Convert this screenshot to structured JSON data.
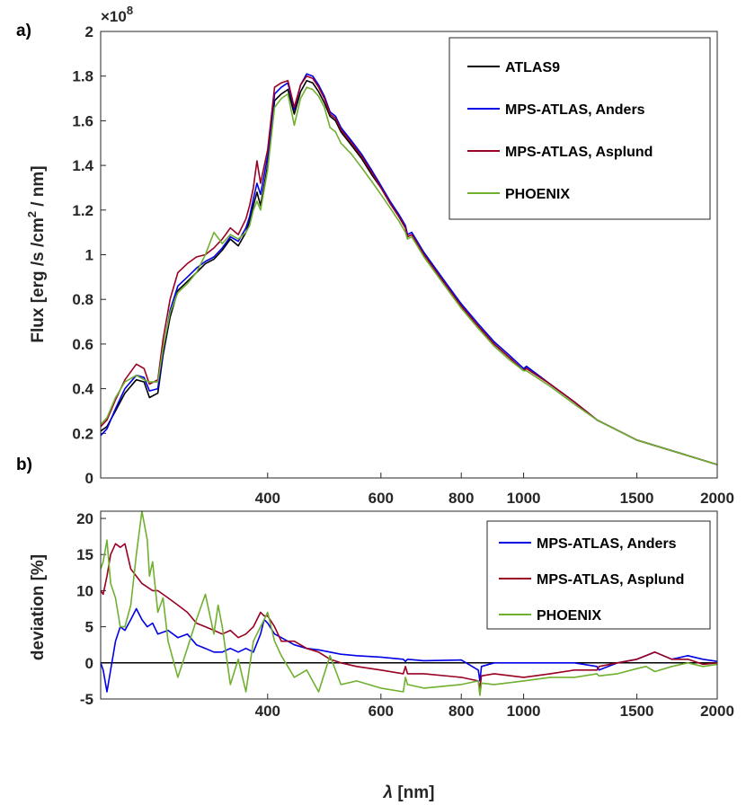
{
  "chart_data": [
    {
      "type": "line",
      "panel_label": "a)",
      "ylabel": "Flux [erg /s /cm",
      "ylabel_sup": "2",
      "ylabel_tail": " / nm]",
      "exponent_base": "×10",
      "exponent_power": "8",
      "xscale": "log",
      "xlim": [
        220,
        2000
      ],
      "ylim": [
        0,
        2
      ],
      "xticks": [
        400,
        600,
        800,
        1000,
        1500,
        2000
      ],
      "xtick_labels": [
        "400",
        "600",
        "800",
        "1000",
        "1500",
        "2000"
      ],
      "yticks": [
        0,
        0.2,
        0.4,
        0.6,
        0.8,
        1,
        1.2,
        1.4,
        1.6,
        1.8,
        2
      ],
      "ytick_labels": [
        "0",
        "0.2",
        "0.4",
        "0.6",
        "0.8",
        "1",
        "1.2",
        "1.4",
        "1.6",
        "1.8",
        "2"
      ],
      "legend_position": "top-right",
      "series": [
        {
          "name": "ATLAS9",
          "color": "#000000",
          "x": [
            220,
            225,
            232,
            240,
            250,
            257,
            262,
            270,
            275,
            282,
            290,
            300,
            310,
            320,
            330,
            340,
            350,
            360,
            370,
            375,
            380,
            385,
            390,
            400,
            410,
            420,
            430,
            440,
            450,
            460,
            470,
            480,
            490,
            500,
            510,
            520,
            540,
            560,
            580,
            600,
            620,
            640,
            655,
            660,
            670,
            700,
            750,
            800,
            850,
            900,
            950,
            1000,
            1010,
            1100,
            1200,
            1300,
            1500,
            1800,
            2000
          ],
          "y": [
            0.21,
            0.23,
            0.3,
            0.38,
            0.44,
            0.43,
            0.36,
            0.38,
            0.55,
            0.72,
            0.84,
            0.88,
            0.92,
            0.96,
            0.98,
            1.02,
            1.07,
            1.04,
            1.1,
            1.15,
            1.22,
            1.28,
            1.22,
            1.4,
            1.69,
            1.72,
            1.74,
            1.63,
            1.73,
            1.78,
            1.77,
            1.73,
            1.68,
            1.62,
            1.6,
            1.55,
            1.49,
            1.43,
            1.36,
            1.3,
            1.23,
            1.17,
            1.12,
            1.08,
            1.09,
            1.0,
            0.88,
            0.77,
            0.68,
            0.6,
            0.54,
            0.48,
            0.5,
            0.42,
            0.34,
            0.26,
            0.17,
            0.1,
            0.06
          ]
        },
        {
          "name": "MPS-ATLAS, Anders",
          "color": "#0000e6",
          "x": [
            220,
            225,
            232,
            240,
            250,
            257,
            262,
            270,
            275,
            282,
            290,
            300,
            310,
            320,
            330,
            340,
            350,
            360,
            370,
            375,
            380,
            385,
            390,
            400,
            410,
            420,
            430,
            440,
            450,
            460,
            470,
            480,
            490,
            500,
            510,
            520,
            540,
            560,
            580,
            600,
            620,
            640,
            655,
            660,
            670,
            700,
            750,
            800,
            850,
            900,
            950,
            1000,
            1010,
            1100,
            1200,
            1300,
            1500,
            1800,
            2000
          ],
          "y": [
            0.19,
            0.22,
            0.31,
            0.4,
            0.46,
            0.45,
            0.39,
            0.4,
            0.57,
            0.75,
            0.86,
            0.9,
            0.94,
            0.97,
            0.99,
            1.03,
            1.08,
            1.06,
            1.12,
            1.17,
            1.25,
            1.32,
            1.27,
            1.44,
            1.72,
            1.75,
            1.77,
            1.65,
            1.76,
            1.81,
            1.8,
            1.76,
            1.71,
            1.64,
            1.62,
            1.57,
            1.51,
            1.45,
            1.38,
            1.31,
            1.24,
            1.18,
            1.13,
            1.09,
            1.1,
            1.01,
            0.89,
            0.78,
            0.69,
            0.61,
            0.55,
            0.49,
            0.5,
            0.42,
            0.34,
            0.26,
            0.17,
            0.1,
            0.06
          ]
        },
        {
          "name": "MPS-ATLAS, Asplund",
          "color": "#990022",
          "x": [
            220,
            225,
            232,
            240,
            250,
            257,
            262,
            270,
            275,
            282,
            290,
            300,
            310,
            320,
            330,
            340,
            350,
            360,
            370,
            375,
            380,
            385,
            390,
            400,
            410,
            420,
            430,
            440,
            450,
            460,
            470,
            480,
            490,
            500,
            510,
            520,
            540,
            560,
            580,
            600,
            620,
            640,
            655,
            660,
            670,
            700,
            750,
            800,
            850,
            900,
            950,
            1000,
            1010,
            1100,
            1200,
            1300,
            1500,
            1800,
            2000
          ],
          "y": [
            0.23,
            0.26,
            0.35,
            0.44,
            0.51,
            0.49,
            0.42,
            0.44,
            0.62,
            0.8,
            0.92,
            0.96,
            0.99,
            1.0,
            1.03,
            1.07,
            1.12,
            1.09,
            1.16,
            1.22,
            1.3,
            1.42,
            1.32,
            1.47,
            1.75,
            1.77,
            1.78,
            1.66,
            1.76,
            1.8,
            1.79,
            1.75,
            1.7,
            1.63,
            1.61,
            1.56,
            1.5,
            1.44,
            1.37,
            1.3,
            1.23,
            1.17,
            1.12,
            1.08,
            1.09,
            1.0,
            0.88,
            0.77,
            0.68,
            0.6,
            0.54,
            0.48,
            0.49,
            0.42,
            0.34,
            0.26,
            0.17,
            0.1,
            0.06
          ]
        },
        {
          "name": "PHOENIX",
          "color": "#70b030",
          "x": [
            220,
            225,
            232,
            240,
            250,
            257,
            262,
            270,
            275,
            282,
            290,
            300,
            310,
            320,
            330,
            340,
            350,
            360,
            370,
            375,
            380,
            385,
            390,
            400,
            410,
            420,
            430,
            440,
            450,
            460,
            470,
            480,
            490,
            500,
            510,
            520,
            540,
            560,
            580,
            600,
            620,
            640,
            655,
            660,
            670,
            700,
            750,
            800,
            850,
            900,
            950,
            1000,
            1010,
            1100,
            1200,
            1300,
            1500,
            1800,
            2000
          ],
          "y": [
            0.24,
            0.27,
            0.36,
            0.43,
            0.46,
            0.44,
            0.43,
            0.43,
            0.58,
            0.74,
            0.83,
            0.87,
            0.92,
            1.0,
            1.1,
            1.05,
            1.09,
            1.07,
            1.1,
            1.13,
            1.2,
            1.24,
            1.2,
            1.38,
            1.66,
            1.7,
            1.72,
            1.58,
            1.7,
            1.75,
            1.74,
            1.71,
            1.66,
            1.57,
            1.55,
            1.5,
            1.45,
            1.39,
            1.33,
            1.27,
            1.21,
            1.15,
            1.1,
            1.07,
            1.08,
            0.99,
            0.87,
            0.76,
            0.67,
            0.59,
            0.53,
            0.48,
            0.48,
            0.41,
            0.33,
            0.26,
            0.17,
            0.1,
            0.06
          ]
        }
      ]
    },
    {
      "type": "line",
      "panel_label": "b)",
      "ylabel": "deviation [%]",
      "xlabel_symbol": "λ",
      "xlabel": " [nm]",
      "xscale": "log",
      "xlim": [
        220,
        2000
      ],
      "ylim": [
        -5,
        21
      ],
      "xticks": [
        400,
        600,
        800,
        1000,
        1500,
        2000
      ],
      "xtick_labels": [
        "400",
        "600",
        "800",
        "1000",
        "1500",
        "2000"
      ],
      "yticks": [
        -5,
        0,
        5,
        10,
        15,
        20
      ],
      "ytick_labels": [
        "-5",
        "0",
        "5",
        "10",
        "15",
        "20"
      ],
      "zero_line": true,
      "legend_position": "top-right",
      "series": [
        {
          "name": "MPS-ATLAS, Anders",
          "color": "#0000e6",
          "x": [
            220,
            222,
            225,
            228,
            232,
            236,
            240,
            245,
            250,
            255,
            260,
            265,
            270,
            280,
            290,
            300,
            310,
            320,
            330,
            340,
            350,
            360,
            370,
            380,
            390,
            395,
            400,
            410,
            420,
            440,
            460,
            480,
            500,
            520,
            550,
            600,
            650,
            655,
            660,
            700,
            800,
            850,
            855,
            860,
            900,
            1000,
            1100,
            1200,
            1300,
            1310,
            1400,
            1500,
            1550,
            1600,
            1700,
            1800,
            1900,
            2000
          ],
          "y": [
            0,
            -1,
            -4,
            -1,
            3,
            5,
            4.5,
            6,
            7.5,
            6,
            5,
            5.5,
            4,
            4.5,
            3.5,
            4,
            2.5,
            2,
            1.5,
            1.5,
            2,
            1.5,
            2,
            1.5,
            4,
            6,
            5.5,
            4,
            3.5,
            2.5,
            2,
            1.8,
            1.5,
            1.2,
            1,
            0.8,
            0.5,
            0.2,
            0.5,
            0.3,
            0.4,
            -1,
            -2.5,
            -0.5,
            0,
            0,
            0,
            0,
            -0.5,
            -1,
            0,
            0.5,
            1,
            1.5,
            0.5,
            1,
            0.5,
            0.2
          ]
        },
        {
          "name": "MPS-ATLAS, Asplund",
          "color": "#990022",
          "x": [
            220,
            222,
            225,
            228,
            232,
            236,
            240,
            245,
            250,
            255,
            260,
            265,
            270,
            280,
            290,
            300,
            310,
            320,
            330,
            340,
            350,
            360,
            370,
            380,
            390,
            395,
            400,
            410,
            420,
            440,
            460,
            480,
            500,
            520,
            550,
            600,
            650,
            655,
            660,
            700,
            800,
            850,
            855,
            860,
            900,
            1000,
            1100,
            1200,
            1300,
            1310,
            1400,
            1500,
            1550,
            1600,
            1700,
            1800,
            1900,
            2000
          ],
          "y": [
            10,
            9.5,
            12,
            15,
            16.5,
            16,
            16.5,
            13,
            12,
            11,
            10.5,
            10,
            10,
            9,
            8,
            7,
            5.5,
            5,
            4.5,
            4,
            4.5,
            3.5,
            4,
            5,
            7,
            6.5,
            6.5,
            5,
            3,
            3,
            2,
            1.5,
            0.5,
            0,
            -0.5,
            -1,
            -1.5,
            -0.5,
            -1.5,
            -1.5,
            -2,
            -2.5,
            -3.5,
            -1.8,
            -1.5,
            -2,
            -1.5,
            -1,
            -1,
            -0.5,
            0,
            0.5,
            1,
            1.5,
            0.5,
            0.5,
            -0.2,
            0
          ]
        },
        {
          "name": "PHOENIX",
          "color": "#70b030",
          "x": [
            220,
            222,
            225,
            228,
            232,
            236,
            240,
            245,
            250,
            255,
            260,
            262,
            265,
            270,
            275,
            280,
            290,
            300,
            310,
            320,
            330,
            335,
            340,
            350,
            360,
            370,
            380,
            390,
            395,
            400,
            410,
            420,
            440,
            460,
            480,
            500,
            520,
            550,
            600,
            650,
            655,
            660,
            700,
            800,
            850,
            855,
            860,
            900,
            1000,
            1100,
            1200,
            1300,
            1310,
            1400,
            1500,
            1550,
            1600,
            1700,
            1800,
            1900,
            2000
          ],
          "y": [
            13,
            14,
            17,
            11,
            9,
            5,
            5,
            8,
            15,
            21,
            17,
            12,
            14,
            7,
            9,
            3,
            -2,
            2,
            6,
            9.5,
            4,
            8,
            5,
            -3,
            0.5,
            -4,
            3,
            5,
            6,
            7,
            3,
            1,
            -2,
            -1,
            -4,
            1,
            -3,
            -2.5,
            -3.5,
            -4,
            -2,
            -3,
            -3.5,
            -3,
            -2.5,
            -4.5,
            -2.8,
            -3,
            -2.5,
            -2,
            -2,
            -1.5,
            -1.8,
            -1.5,
            -0.8,
            -0.5,
            -1.2,
            -0.5,
            0,
            -0.5,
            -0.2
          ]
        }
      ]
    }
  ]
}
